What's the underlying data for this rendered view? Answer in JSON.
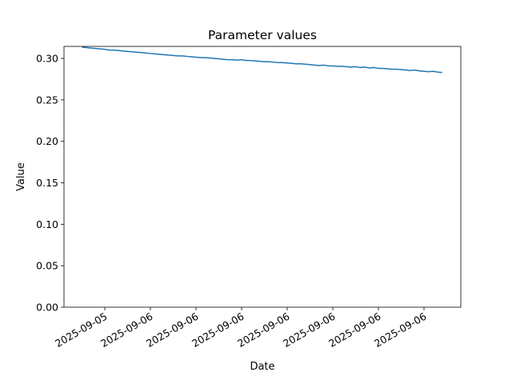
{
  "chart_data": {
    "type": "line",
    "title": "Parameter values",
    "xlabel": "Date",
    "ylabel": "Value",
    "categories": [
      null,
      null,
      null,
      null,
      null,
      "2025-09-05",
      null,
      null,
      null,
      null,
      null,
      null,
      null,
      null,
      null,
      "2025-09-06",
      null,
      null,
      null,
      null,
      null,
      null,
      null,
      null,
      null,
      "2025-09-06",
      null,
      null,
      null,
      null,
      null,
      null,
      null,
      null,
      null,
      "2025-09-06",
      null,
      null,
      null,
      null,
      null,
      null,
      null,
      null,
      null,
      "2025-09-06",
      null,
      null,
      null,
      null,
      null,
      null,
      null,
      null,
      null,
      "2025-09-06",
      null,
      null,
      null,
      null,
      null,
      null,
      null,
      null,
      null,
      "2025-09-06",
      null,
      null,
      null,
      null,
      null,
      null,
      null,
      null,
      null,
      "2025-09-06",
      null,
      null,
      null,
      null
    ],
    "values": [
      0.3135,
      0.313,
      0.3125,
      0.312,
      0.3115,
      0.311,
      0.31,
      0.31,
      0.3095,
      0.309,
      0.3085,
      0.308,
      0.3075,
      0.307,
      0.3065,
      0.306,
      0.3055,
      0.305,
      0.3045,
      0.304,
      0.3035,
      0.303,
      0.303,
      0.3025,
      0.302,
      0.3015,
      0.301,
      0.301,
      0.3005,
      0.3,
      0.2995,
      0.299,
      0.2985,
      0.2985,
      0.298,
      0.2985,
      0.2975,
      0.2975,
      0.297,
      0.2965,
      0.296,
      0.296,
      0.2955,
      0.295,
      0.295,
      0.2945,
      0.294,
      0.2935,
      0.2935,
      0.293,
      0.2925,
      0.292,
      0.2915,
      0.292,
      0.291,
      0.291,
      0.2905,
      0.2905,
      0.29,
      0.2895,
      0.29,
      0.289,
      0.2895,
      0.2885,
      0.289,
      0.288,
      0.288,
      0.2875,
      0.287,
      0.287,
      0.2865,
      0.286,
      0.2855,
      0.286,
      0.285,
      0.2845,
      0.284,
      0.2845,
      0.2835,
      0.283
    ],
    "color": "#1f77b4",
    "ylim": [
      0,
      0.3145
    ],
    "yticks": [
      {
        "value": 0,
        "label": "0.00"
      },
      {
        "value": 0.05,
        "label": "0.05"
      },
      {
        "value": 0.1,
        "label": "0.10"
      },
      {
        "value": 0.15,
        "label": "0.15"
      },
      {
        "value": 0.2,
        "label": "0.20"
      },
      {
        "value": 0.25,
        "label": "0.25"
      },
      {
        "value": 0.3,
        "label": "0.30"
      }
    ]
  }
}
